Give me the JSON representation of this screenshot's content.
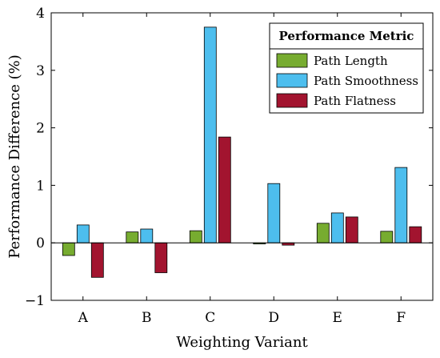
{
  "chart_data": {
    "type": "bar",
    "title": "",
    "xlabel": "Weighting Variant",
    "ylabel": "Performance Difference (%)",
    "ylim": [
      -1,
      4
    ],
    "yticks": [
      "−1",
      "0",
      "1",
      "2",
      "3",
      "4"
    ],
    "categories": [
      "A",
      "B",
      "C",
      "D",
      "E",
      "F"
    ],
    "grid": false,
    "legend": {
      "title": "Performance Metric",
      "placement": "top-right"
    },
    "series": [
      {
        "name": "Path Length",
        "color": "#77ac30",
        "values": [
          -0.22,
          0.19,
          0.21,
          -0.02,
          0.34,
          0.2
        ]
      },
      {
        "name": "Path Smoothness",
        "color": "#4dbeee",
        "values": [
          0.31,
          0.24,
          3.75,
          1.03,
          0.52,
          1.31
        ]
      },
      {
        "name": "Path Flatness",
        "color": "#a2142f",
        "values": [
          -0.6,
          -0.52,
          1.84,
          -0.04,
          0.45,
          0.28
        ]
      }
    ]
  }
}
